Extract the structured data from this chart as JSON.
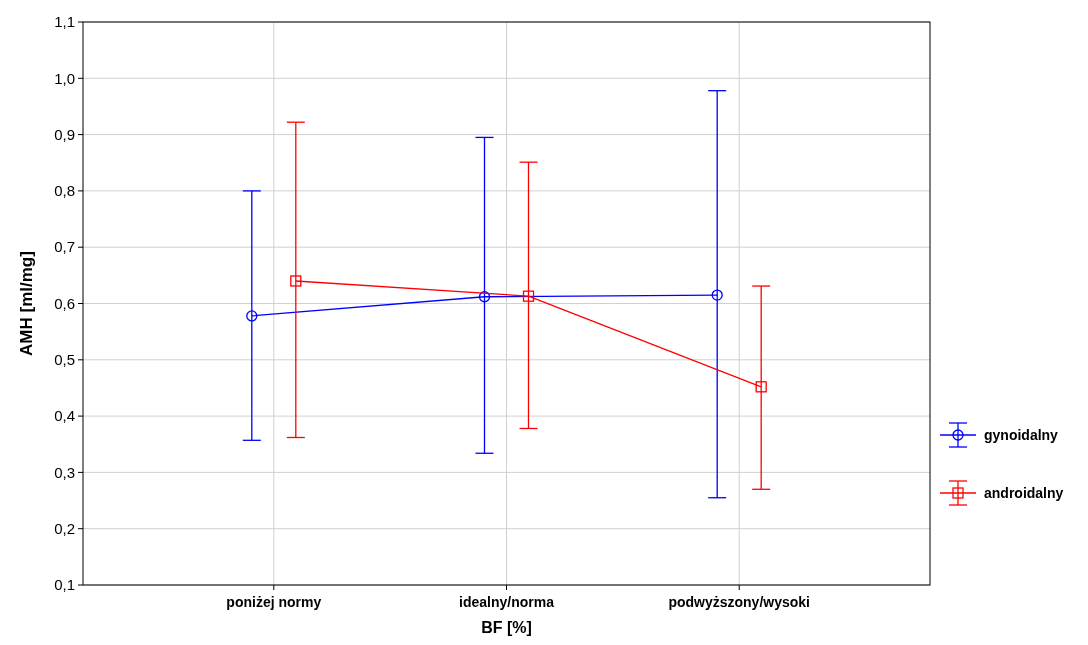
{
  "chart_data": {
    "type": "line",
    "xlabel": "BF [%]",
    "ylabel": "AMH [ml/mg]",
    "categories": [
      "poniżej normy",
      "idealny/norma",
      "podwyższony/wysoki"
    ],
    "ylim": [
      0.1,
      1.1
    ],
    "yticks": [
      {
        "value": 0.1,
        "label": "0,1"
      },
      {
        "value": 0.2,
        "label": "0,2"
      },
      {
        "value": 0.3,
        "label": "0,3"
      },
      {
        "value": 0.4,
        "label": "0,4"
      },
      {
        "value": 0.5,
        "label": "0,5"
      },
      {
        "value": 0.6,
        "label": "0,6"
      },
      {
        "value": 0.7,
        "label": "0,7"
      },
      {
        "value": 0.8,
        "label": "0,8"
      },
      {
        "value": 0.9,
        "label": "0,9"
      },
      {
        "value": 1.0,
        "label": "1,0"
      },
      {
        "value": 1.1,
        "label": "1,1"
      }
    ],
    "grid": true,
    "legend": "right",
    "series": [
      {
        "name": "gynoidalny",
        "color": "#0000ff",
        "marker": "circle",
        "values": [
          0.578,
          0.612,
          0.615
        ],
        "errors": [
          [
            0.357,
            0.8
          ],
          [
            0.334,
            0.895
          ],
          [
            0.255,
            0.978
          ]
        ]
      },
      {
        "name": "androidalny",
        "color": "#ff0000",
        "marker": "square",
        "values": [
          0.64,
          0.613,
          0.452
        ],
        "errors": [
          [
            0.362,
            0.922
          ],
          [
            0.378,
            0.851
          ],
          [
            0.27,
            0.631
          ]
        ]
      }
    ]
  }
}
